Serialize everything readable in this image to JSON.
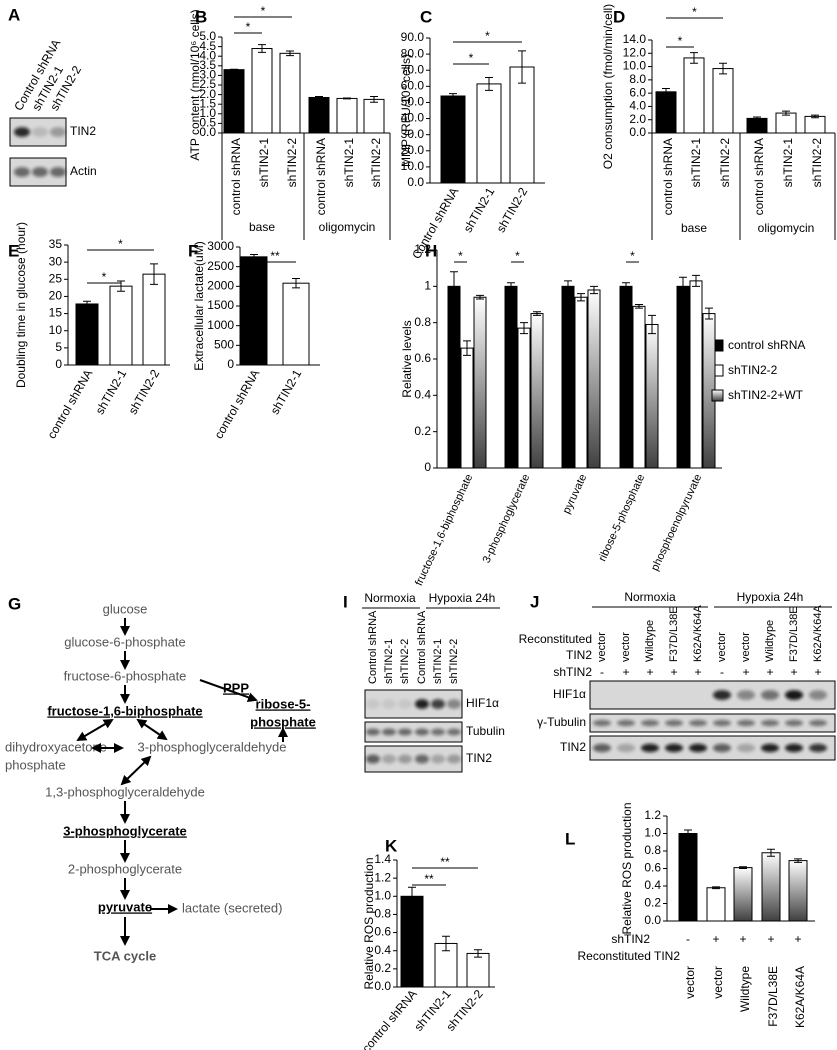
{
  "chart_data": [
    {
      "type": "bar",
      "label": "B",
      "ylabel": "ATP content (nmol/10⁶ cells)",
      "categories": [
        "control shRNA",
        "shTIN2-1",
        "shTIN2-2",
        "control shRNA",
        "shTIN2-1",
        "shTIN2-2"
      ],
      "groups": [
        "base",
        "oligomycin"
      ],
      "values": [
        3.3,
        4.4,
        4.15,
        1.85,
        1.8,
        1.75
      ],
      "errors": [
        0.02,
        0.2,
        0.12,
        0.05,
        0.02,
        0.15
      ],
      "colors": [
        "#000000",
        "#ffffff",
        "#ffffff",
        "#000000",
        "#ffffff",
        "#ffffff"
      ],
      "ylim": [
        0,
        5
      ],
      "yticks": [
        {
          "value": 0,
          "label": "0.0"
        },
        0.5,
        {
          "value": 1,
          "label": "1.0"
        },
        1.5,
        {
          "value": 2,
          "label": "2.0"
        },
        2.5,
        {
          "value": 3,
          "label": "3.0"
        },
        3.5,
        {
          "value": 4,
          "label": "4.0"
        },
        4.5,
        {
          "value": 5,
          "label": "5.0"
        }
      ],
      "annotations": [
        "*",
        "*"
      ]
    },
    {
      "type": "bar",
      "label": "C",
      "ylabel": "MMP (RFU/10⁴ cells)",
      "categories": [
        "Control shRNA",
        "shTIN2-1",
        "shTIN2-2"
      ],
      "values": [
        54,
        61.5,
        72
      ],
      "errors": [
        1.5,
        4,
        10
      ],
      "colors": [
        "#000000",
        "#ffffff",
        "#ffffff"
      ],
      "ylim": [
        0,
        90
      ],
      "yticks": [
        {
          "value": 0,
          "label": "0.0"
        },
        {
          "value": 10,
          "label": "10.0"
        },
        {
          "value": 20,
          "label": "20.0"
        },
        {
          "value": 30,
          "label": "30.0"
        },
        {
          "value": 40,
          "label": "40.0"
        },
        {
          "value": 50,
          "label": "50.0"
        },
        {
          "value": 60,
          "label": "60.0"
        },
        {
          "value": 70,
          "label": "70.0"
        },
        {
          "value": 80,
          "label": "80.0"
        },
        {
          "value": 90,
          "label": "90.0"
        }
      ],
      "annotations": [
        "*",
        "*"
      ]
    },
    {
      "type": "bar",
      "label": "D",
      "ylabel": "O2 consumption (fmol/min/cell)",
      "categories": [
        "control shRNA",
        "shTIN2-1",
        "shTIN2-2",
        "control shRNA",
        "shTIN2-1",
        "shTIN2-2"
      ],
      "groups": [
        "base",
        "oligomycin"
      ],
      "values": [
        6.2,
        11.3,
        9.7,
        2.2,
        3.0,
        2.5
      ],
      "errors": [
        0.5,
        0.8,
        0.8,
        0.2,
        0.3,
        0.2
      ],
      "colors": [
        "#000000",
        "#ffffff",
        "#ffffff",
        "#000000",
        "#ffffff",
        "#ffffff"
      ],
      "ylim": [
        0,
        14
      ],
      "yticks": [
        {
          "value": 0,
          "label": "0.0"
        },
        {
          "value": 2,
          "label": "2.0"
        },
        {
          "value": 4,
          "label": "4.0"
        },
        {
          "value": 6,
          "label": "6.0"
        },
        {
          "value": 8,
          "label": "8.0"
        },
        {
          "value": 10,
          "label": "10.0"
        },
        {
          "value": 12,
          "label": "12.0"
        },
        {
          "value": 14,
          "label": "14.0"
        }
      ],
      "annotations": [
        "*",
        "*"
      ]
    },
    {
      "type": "bar",
      "label": "E",
      "ylabel": "Doubling time in glucose (hour)",
      "categories": [
        "control shRNA",
        "shTIN2-1",
        "shTIN2-2"
      ],
      "values": [
        17.8,
        23,
        26.5
      ],
      "errors": [
        0.8,
        1.5,
        3
      ],
      "colors": [
        "#000000",
        "#ffffff",
        "#ffffff"
      ],
      "ylim": [
        0,
        35
      ],
      "yticks": [
        0,
        5,
        10,
        15,
        20,
        25,
        30,
        35
      ],
      "annotations": [
        "*",
        "*"
      ]
    },
    {
      "type": "bar",
      "label": "F",
      "ylabel": "Extracellular lactate(uM)",
      "categories": [
        "control shRNA",
        "shTIN2-1"
      ],
      "values": [
        2750,
        2080
      ],
      "errors": [
        60,
        120
      ],
      "colors": [
        "#000000",
        "#ffffff"
      ],
      "ylim": [
        0,
        3000
      ],
      "yticks": [
        0,
        500,
        1000,
        1500,
        2000,
        2500,
        3000
      ],
      "annotations": [
        "**"
      ]
    },
    {
      "type": "bar",
      "label": "H",
      "ylabel": "Relative levels",
      "categories": [
        "fructose-1,6-biphosphate",
        "3-phosphoglycerate",
        "pyruvate",
        "ribose-5-phosphate",
        "phosphoenolpyruvate"
      ],
      "series": [
        {
          "name": "control shRNA",
          "color": "#000000",
          "values": [
            1.0,
            1.0,
            1.0,
            1.0,
            1.0
          ],
          "errors": [
            0.08,
            0.02,
            0.03,
            0.02,
            0.05
          ]
        },
        {
          "name": "shTIN2-2",
          "color": "#ffffff",
          "values": [
            0.66,
            0.77,
            0.94,
            0.89,
            1.03
          ],
          "errors": [
            0.04,
            0.03,
            0.02,
            0.01,
            0.03
          ]
        },
        {
          "name": "shTIN2-2+WT",
          "color": "#404040",
          "gradient": true,
          "values": [
            0.94,
            0.85,
            0.98,
            0.79,
            0.85
          ],
          "errors": [
            0.01,
            0.01,
            0.02,
            0.05,
            0.03
          ]
        }
      ],
      "legend": "right",
      "ylim": [
        0,
        1.2
      ],
      "yticks": [
        0,
        0.2,
        0.4,
        0.6,
        0.8,
        1,
        1.2
      ],
      "annotations": [
        "*",
        "*",
        "*"
      ]
    },
    {
      "type": "bar",
      "label": "K",
      "ylabel": "Relative ROS production",
      "categories": [
        "control shRNA",
        "shTIN2-1",
        "shTIN2-2"
      ],
      "values": [
        1.0,
        0.48,
        0.37
      ],
      "errors": [
        0.1,
        0.08,
        0.04
      ],
      "colors": [
        "#000000",
        "#ffffff",
        "#ffffff"
      ],
      "ylim": [
        0,
        1.4
      ],
      "yticks": [
        {
          "value": 0,
          "label": "0.0"
        },
        0.2,
        0.4,
        0.6,
        0.8,
        {
          "value": 1,
          "label": "1.0"
        },
        1.2,
        1.4
      ],
      "annotations": [
        "**",
        "**"
      ]
    },
    {
      "type": "bar",
      "label": "L",
      "ylabel": "Relative ROS production",
      "categories": [
        "vector",
        "vector",
        "Wildtype",
        "F37D/L38E",
        "K62A/K64A"
      ],
      "categories_label": "Reconstituted TIN2",
      "shtin2_label": "shTIN2",
      "shtin2": [
        "-",
        "+",
        "+",
        "+",
        "+"
      ],
      "values": [
        1.0,
        0.38,
        0.61,
        0.78,
        0.69
      ],
      "errors": [
        0.04,
        0.01,
        0.01,
        0.04,
        0.02
      ],
      "colors": [
        "#000000",
        "#ffffff",
        "#404040",
        "#404040",
        "#404040"
      ],
      "gradient": [
        false,
        false,
        true,
        true,
        true
      ],
      "ylim": [
        0,
        1.2
      ],
      "yticks": [
        {
          "value": 0,
          "label": "0.0"
        },
        0.2,
        0.4,
        0.6,
        0.8,
        {
          "value": 1,
          "label": "1.0"
        },
        1.2
      ]
    }
  ],
  "blots": {
    "A": {
      "label": "A",
      "lanes": [
        "Control shRNA",
        "shTIN2-1",
        "shTIN2-2"
      ],
      "rows": [
        "TIN2",
        "Actin"
      ]
    },
    "I": {
      "label": "I",
      "conditions": [
        "Normoxia",
        "Hypoxia 24h"
      ],
      "lanes": [
        "Control shRNA",
        "shTIN2-1",
        "shTIN2-2",
        "Control shRNA",
        "shTIN2-1",
        "shTIN2-2"
      ],
      "rows": [
        "HIF1α",
        "Tubulin",
        "TIN2"
      ]
    },
    "J": {
      "label": "J",
      "conditions": [
        "Normoxia",
        "Hypoxia 24h"
      ],
      "reconstituted_label": [
        "Reconstituted",
        "TIN2"
      ],
      "lanes": [
        "vector",
        "vector",
        "Wildtype",
        "F37D/L38E",
        "K62A/K64A",
        "vector",
        "vector",
        "Wildtype",
        "F37D/L38E",
        "K62A/K64A"
      ],
      "shtin2_label": "shTIN2",
      "shtin2": [
        "-",
        "+",
        "+",
        "+",
        "+",
        "-",
        "+",
        "+",
        "+",
        "+"
      ],
      "rows": [
        "HIF1α",
        "γ-Tubulin",
        "TIN2"
      ]
    }
  },
  "pathway": {
    "label": "G",
    "ppp": "PPP",
    "nodes": [
      "glucose",
      "glucose-6-phosphate",
      "fructose-6-phosphate",
      "fructose-1,6-biphosphate",
      [
        "dihydroxyacetone",
        "phosphate"
      ],
      "3-phosphoglyceraldehyde",
      "1,3-phosphoglyceraldehyde",
      "3-phosphoglycerate",
      "2-phosphoglycerate",
      "pyruvate",
      "lactate (secreted)",
      "TCA cycle",
      [
        "ribose-5-",
        "phosphate"
      ]
    ]
  }
}
